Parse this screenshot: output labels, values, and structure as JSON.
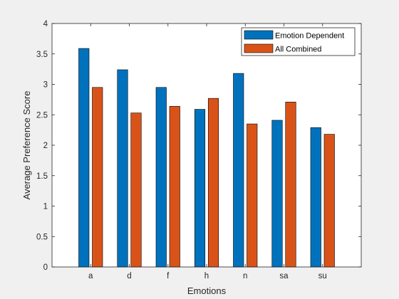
{
  "chart_data": {
    "type": "bar",
    "categories": [
      "a",
      "d",
      "f",
      "h",
      "n",
      "sa",
      "su"
    ],
    "series": [
      {
        "name": "Emotion Dependent",
        "values": [
          3.59,
          3.24,
          2.95,
          2.59,
          3.18,
          2.41,
          2.29
        ],
        "color": "#0072bd"
      },
      {
        "name": "All Combined",
        "values": [
          2.95,
          2.53,
          2.64,
          2.77,
          2.35,
          2.71,
          2.18
        ],
        "color": "#d95319"
      }
    ],
    "xlabel": "Emotions",
    "ylabel": "Average Preference Score",
    "ylim": [
      0,
      4
    ],
    "yticks": [
      "0",
      "0.5",
      "1",
      "1.5",
      "2",
      "2.5",
      "3",
      "3.5",
      "4"
    ],
    "grid": false,
    "legend_position": "top-right"
  }
}
